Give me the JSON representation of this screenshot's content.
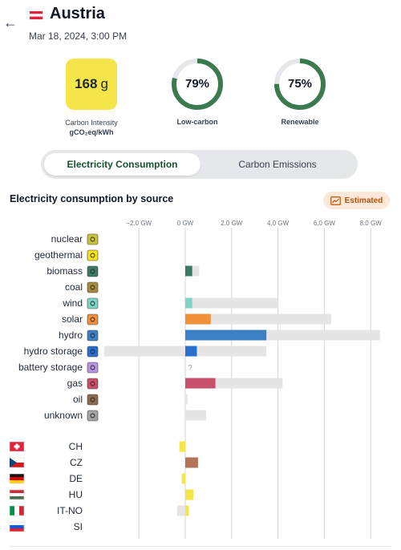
{
  "header": {
    "back_icon": "arrow-left-icon",
    "country": "Austria",
    "datetime": "Mar 18, 2024, 3:00 PM"
  },
  "metrics": {
    "carbon_intensity": {
      "value": "168",
      "unit": "g",
      "label_line1": "Carbon Intensity",
      "label_line2": "gCO₂eq/kWh",
      "color": "#f3e54a"
    },
    "low_carbon": {
      "value": "79%",
      "fraction": 0.79,
      "label": "Low-carbon",
      "color": "#3b7a4f"
    },
    "renewable": {
      "value": "75%",
      "fraction": 0.75,
      "label": "Renewable",
      "color": "#3b7a4f"
    }
  },
  "tabs": [
    {
      "label": "Electricity Consumption",
      "active": true
    },
    {
      "label": "Carbon Emissions",
      "active": false
    }
  ],
  "chart": {
    "title": "Electricity consumption by source",
    "badge": "Estimated"
  },
  "chart_data": {
    "type": "bar",
    "orientation": "horizontal",
    "x_ticks": [
      "−2.0 GW",
      "0 GW",
      "2.0 GW",
      "4.0 GW",
      "6.0 GW",
      "8.0 GW"
    ],
    "x_tick_values": [
      -2,
      0,
      2,
      4,
      6,
      8
    ],
    "xlim": [
      -3.5,
      8.5
    ],
    "unit": "GW",
    "sources": [
      {
        "name": "nuclear",
        "icon": "nuclear-icon",
        "icon_bg": "#c8c23a",
        "value": 0,
        "capacity_min": 0,
        "capacity_max": 0,
        "color": "#c8c23a"
      },
      {
        "name": "geothermal",
        "icon": "geothermal-icon",
        "icon_bg": "#f2e21a",
        "value": 0,
        "capacity_min": 0,
        "capacity_max": 0,
        "color": "#f2e21a"
      },
      {
        "name": "biomass",
        "icon": "biomass-icon",
        "icon_bg": "#3c7a63",
        "value": 0.3,
        "capacity_min": 0,
        "capacity_max": 0.6,
        "color": "#3c7a63"
      },
      {
        "name": "coal",
        "icon": "coal-icon",
        "icon_bg": "#a68a3e",
        "value": 0,
        "capacity_min": 0,
        "capacity_max": 0,
        "color": "#a68a3e"
      },
      {
        "name": "wind",
        "icon": "wind-icon",
        "icon_bg": "#7dd3c4",
        "value": 0.3,
        "capacity_min": 0,
        "capacity_max": 4.0,
        "color": "#7dd3c4"
      },
      {
        "name": "solar",
        "icon": "solar-icon",
        "icon_bg": "#f0913a",
        "value": 1.1,
        "capacity_min": 0,
        "capacity_max": 6.3,
        "color": "#f0913a"
      },
      {
        "name": "hydro",
        "icon": "hydro-icon",
        "icon_bg": "#3b7fc4",
        "value": 3.5,
        "capacity_min": 0,
        "capacity_max": 8.4,
        "color": "#3b7fc4"
      },
      {
        "name": "hydro storage",
        "icon": "hydro-storage-icon",
        "icon_bg": "#2a6fd0",
        "value": 0.5,
        "capacity_min": -3.5,
        "capacity_max": 3.5,
        "color": "#2a6fd0"
      },
      {
        "name": "battery storage",
        "icon": "battery-storage-icon",
        "icon_bg": "#b993e0",
        "value": null,
        "capacity_min": 0,
        "capacity_max": 0,
        "color": "#b993e0",
        "missing_label": "?"
      },
      {
        "name": "gas",
        "icon": "gas-icon",
        "icon_bg": "#c9506a",
        "value": 1.3,
        "capacity_min": 0,
        "capacity_max": 4.2,
        "color": "#c9506a"
      },
      {
        "name": "oil",
        "icon": "oil-icon",
        "icon_bg": "#8a6a52",
        "value": 0,
        "capacity_min": 0,
        "capacity_max": 0.1,
        "color": "#8a6a52"
      },
      {
        "name": "unknown",
        "icon": "unknown-icon",
        "icon_bg": "#a3a3a3",
        "value": 0,
        "capacity_min": 0,
        "capacity_max": 0.9,
        "color": "#a3a3a3"
      }
    ],
    "exchanges": [
      {
        "name": "CH",
        "flag": "ch-flag-icon",
        "value": -0.25,
        "capacity_min": -0.25,
        "capacity_max": 0,
        "color": "#f3e54a"
      },
      {
        "name": "CZ",
        "flag": "cz-flag-icon",
        "value": 0.55,
        "capacity_min": 0,
        "capacity_max": 0.55,
        "color": "#b5735a"
      },
      {
        "name": "DE",
        "flag": "de-flag-icon",
        "value": -0.15,
        "capacity_min": -0.15,
        "capacity_max": 0,
        "color": "#f3e54a"
      },
      {
        "name": "HU",
        "flag": "hu-flag-icon",
        "value": 0.35,
        "capacity_min": 0,
        "capacity_max": 0.35,
        "color": "#f3e54a"
      },
      {
        "name": "IT-NO",
        "flag": "it-flag-icon",
        "value": 0.15,
        "capacity_min": -0.35,
        "capacity_max": 0.15,
        "color": "#f3e54a"
      },
      {
        "name": "SI",
        "flag": "si-flag-icon",
        "value": 0,
        "capacity_min": 0,
        "capacity_max": 0,
        "color": "#f3e54a"
      }
    ]
  }
}
